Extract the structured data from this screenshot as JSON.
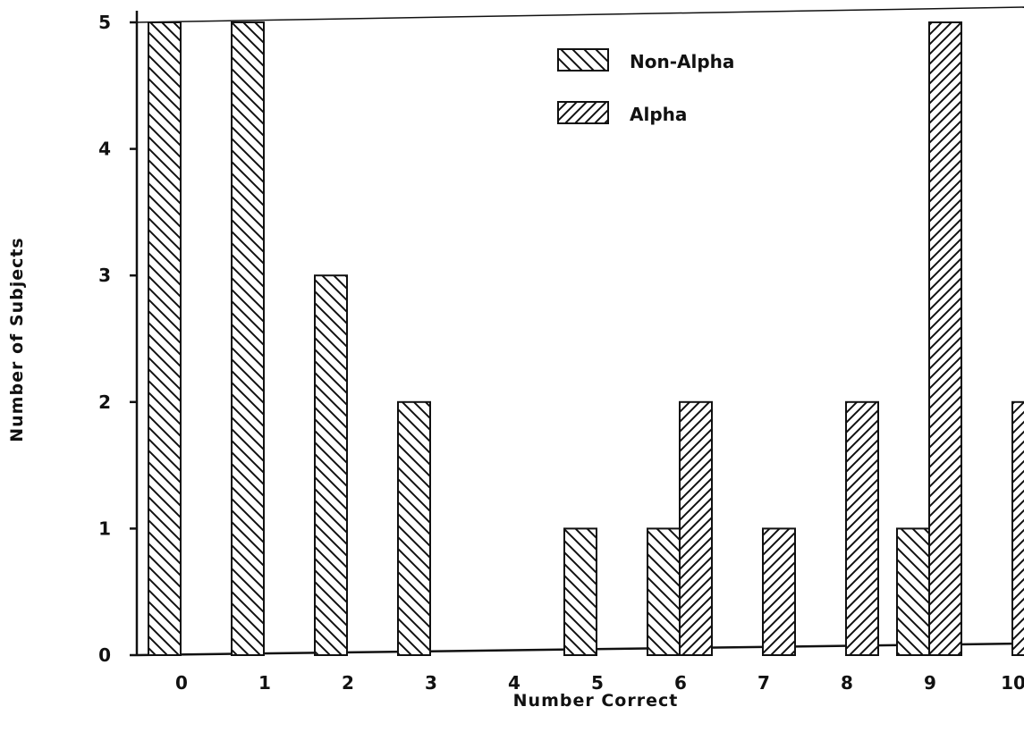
{
  "chart_data": {
    "type": "bar",
    "title": "",
    "xlabel": "Number Correct",
    "ylabel": "Number of Subjects",
    "categories": [
      "0",
      "1",
      "2",
      "3",
      "4",
      "5",
      "6",
      "7",
      "8",
      "9",
      "10"
    ],
    "series": [
      {
        "name": "Non-Alpha",
        "values": [
          5,
          5,
          3,
          2,
          0,
          1,
          1,
          0,
          0,
          1,
          0
        ]
      },
      {
        "name": "Alpha",
        "values": [
          0,
          0,
          0,
          0,
          0,
          0,
          2,
          1,
          2,
          5,
          2
        ]
      }
    ],
    "ylim": [
      0,
      5
    ],
    "yticks": [
      "0",
      "1",
      "2",
      "3",
      "4",
      "5"
    ],
    "grid": false,
    "legend_position": "top-right"
  }
}
